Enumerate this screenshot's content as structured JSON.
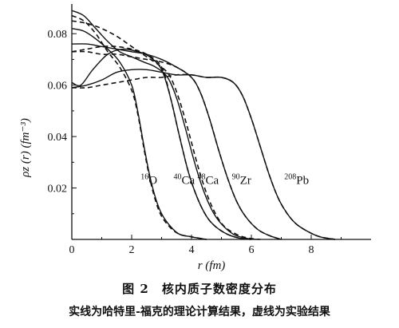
{
  "chart_data": {
    "type": "line",
    "xlabel": "r (fm)",
    "ylabel": "ρz (r) (fm⁻³)",
    "xlim": [
      0,
      10
    ],
    "ylim": [
      0,
      0.09
    ],
    "x_ticks": [
      "0",
      "2",
      "4",
      "6",
      "8"
    ],
    "y_ticks": [
      "0.02",
      "0.04",
      "0.06",
      "0.08"
    ],
    "grid": false,
    "legend": "none",
    "line_styles": {
      "theory": "solid",
      "experiment": "dashed"
    },
    "series": [
      {
        "name": "16O",
        "label_base": "O",
        "label_mass": "16",
        "label_x": 2.3,
        "label_y": 0.0215,
        "solid": [
          [
            0,
            0.082
          ],
          [
            0.4,
            0.081
          ],
          [
            0.8,
            0.078
          ],
          [
            1.2,
            0.074
          ],
          [
            1.6,
            0.069
          ],
          [
            2.0,
            0.06
          ],
          [
            2.2,
            0.05
          ],
          [
            2.4,
            0.037
          ],
          [
            2.6,
            0.025
          ],
          [
            2.8,
            0.016
          ],
          [
            3.0,
            0.01
          ],
          [
            3.3,
            0.005
          ],
          [
            3.6,
            0.002
          ],
          [
            4.0,
            0.001
          ],
          [
            4.5,
            0
          ]
        ],
        "dashed": [
          [
            0,
            0.087
          ],
          [
            0.4,
            0.085
          ],
          [
            0.8,
            0.08
          ],
          [
            1.2,
            0.073
          ],
          [
            1.6,
            0.067
          ],
          [
            2.0,
            0.058
          ],
          [
            2.2,
            0.049
          ],
          [
            2.4,
            0.036
          ],
          [
            2.6,
            0.024
          ],
          [
            2.8,
            0.015
          ],
          [
            3.0,
            0.009
          ],
          [
            3.3,
            0.0045
          ],
          [
            3.6,
            0.002
          ],
          [
            4.0,
            0.001
          ],
          [
            4.5,
            0
          ]
        ]
      },
      {
        "name": "40Ca",
        "label_base": "Ca",
        "label_mass": "40",
        "label_x": 3.4,
        "label_y": 0.0215,
        "solid": [
          [
            0,
            0.061
          ],
          [
            0.3,
            0.06
          ],
          [
            0.7,
            0.066
          ],
          [
            1.2,
            0.072
          ],
          [
            1.7,
            0.074
          ],
          [
            2.2,
            0.073
          ],
          [
            2.6,
            0.071
          ],
          [
            3.0,
            0.066
          ],
          [
            3.3,
            0.055
          ],
          [
            3.6,
            0.04
          ],
          [
            3.9,
            0.026
          ],
          [
            4.2,
            0.016
          ],
          [
            4.5,
            0.009
          ],
          [
            4.8,
            0.005
          ],
          [
            5.2,
            0.002
          ],
          [
            5.6,
            0.0005
          ],
          [
            6.0,
            0
          ]
        ],
        "dashed": [
          [
            0,
            0.073
          ],
          [
            0.5,
            0.074
          ],
          [
            1.0,
            0.075
          ],
          [
            1.5,
            0.075
          ],
          [
            2.0,
            0.074
          ],
          [
            2.5,
            0.072
          ],
          [
            3.0,
            0.067
          ],
          [
            3.3,
            0.055
          ],
          [
            3.6,
            0.04
          ],
          [
            3.9,
            0.026
          ],
          [
            4.2,
            0.016
          ],
          [
            4.5,
            0.009
          ],
          [
            4.8,
            0.005
          ],
          [
            5.2,
            0.002
          ],
          [
            5.6,
            0.0005
          ],
          [
            6.0,
            0
          ]
        ]
      },
      {
        "name": "48Ca",
        "label_base": "Ca",
        "label_mass": "48",
        "label_x": 4.2,
        "label_y": 0.0215,
        "solid": [
          [
            0,
            0.089
          ],
          [
            0.4,
            0.087
          ],
          [
            0.8,
            0.082
          ],
          [
            1.2,
            0.077
          ],
          [
            1.6,
            0.073
          ],
          [
            2.0,
            0.071
          ],
          [
            2.4,
            0.069
          ],
          [
            2.8,
            0.067
          ],
          [
            3.2,
            0.063
          ],
          [
            3.5,
            0.055
          ],
          [
            3.8,
            0.043
          ],
          [
            4.1,
            0.03
          ],
          [
            4.4,
            0.019
          ],
          [
            4.7,
            0.011
          ],
          [
            5.0,
            0.006
          ],
          [
            5.4,
            0.002
          ],
          [
            5.8,
            0.0005
          ],
          [
            6.2,
            0
          ]
        ],
        "dashed": [
          [
            0,
            0.085
          ],
          [
            0.5,
            0.084
          ],
          [
            1.0,
            0.082
          ],
          [
            1.5,
            0.079
          ],
          [
            2.0,
            0.075
          ],
          [
            2.5,
            0.071
          ],
          [
            3.0,
            0.067
          ],
          [
            3.3,
            0.063
          ],
          [
            3.6,
            0.054
          ],
          [
            3.9,
            0.042
          ],
          [
            4.2,
            0.029
          ],
          [
            4.5,
            0.018
          ],
          [
            4.8,
            0.01
          ],
          [
            5.1,
            0.005
          ],
          [
            5.5,
            0.002
          ],
          [
            5.9,
            0.0005
          ],
          [
            6.3,
            0
          ]
        ]
      },
      {
        "name": "90Zr",
        "label_base": "Zr",
        "label_mass": "90",
        "label_x": 5.35,
        "label_y": 0.0215,
        "solid": [
          [
            0,
            0.076
          ],
          [
            0.5,
            0.076
          ],
          [
            1.0,
            0.075
          ],
          [
            1.5,
            0.074
          ],
          [
            2.0,
            0.073
          ],
          [
            2.5,
            0.072
          ],
          [
            3.0,
            0.07
          ],
          [
            3.5,
            0.067
          ],
          [
            4.0,
            0.063
          ],
          [
            4.3,
            0.057
          ],
          [
            4.6,
            0.047
          ],
          [
            4.9,
            0.035
          ],
          [
            5.2,
            0.024
          ],
          [
            5.5,
            0.015
          ],
          [
            5.8,
            0.009
          ],
          [
            6.2,
            0.004
          ],
          [
            6.6,
            0.0015
          ],
          [
            7.0,
            0
          ]
        ],
        "dashed": [
          [
            0,
            0.073
          ],
          [
            0.5,
            0.073
          ],
          [
            1.0,
            0.072
          ],
          [
            1.5,
            0.072
          ],
          [
            2.0,
            0.071
          ],
          [
            2.5,
            0.07
          ],
          [
            3.0,
            0.069
          ],
          [
            3.5,
            0.067
          ],
          [
            4.0,
            0.063
          ],
          [
            4.3,
            0.057
          ],
          [
            4.6,
            0.047
          ],
          [
            4.9,
            0.035
          ],
          [
            5.2,
            0.024
          ],
          [
            5.5,
            0.015
          ],
          [
            5.8,
            0.009
          ],
          [
            6.2,
            0.004
          ],
          [
            6.6,
            0.0015
          ],
          [
            7.0,
            0
          ]
        ]
      },
      {
        "name": "208Pb",
        "label_base": "Pb",
        "label_mass": "208",
        "label_x": 7.1,
        "label_y": 0.0215,
        "solid": [
          [
            0,
            0.059
          ],
          [
            0.5,
            0.06
          ],
          [
            1.0,
            0.062
          ],
          [
            1.5,
            0.065
          ],
          [
            2.0,
            0.066
          ],
          [
            2.5,
            0.066
          ],
          [
            3.0,
            0.065
          ],
          [
            3.5,
            0.064
          ],
          [
            4.0,
            0.064
          ],
          [
            4.5,
            0.063
          ],
          [
            5.0,
            0.063
          ],
          [
            5.4,
            0.061
          ],
          [
            5.7,
            0.056
          ],
          [
            6.0,
            0.047
          ],
          [
            6.3,
            0.036
          ],
          [
            6.6,
            0.025
          ],
          [
            6.9,
            0.016
          ],
          [
            7.2,
            0.01
          ],
          [
            7.5,
            0.006
          ],
          [
            7.9,
            0.003
          ],
          [
            8.3,
            0.001
          ],
          [
            8.8,
            0
          ]
        ],
        "dashed": [
          [
            0,
            0.059
          ],
          [
            0.5,
            0.059
          ],
          [
            1.0,
            0.06
          ],
          [
            1.5,
            0.061
          ],
          [
            2.0,
            0.062
          ],
          [
            2.5,
            0.063
          ],
          [
            3.0,
            0.063
          ],
          [
            3.5,
            0.064
          ],
          [
            4.0,
            0.064
          ],
          [
            4.5,
            0.063
          ],
          [
            5.0,
            0.063
          ],
          [
            5.4,
            0.061
          ],
          [
            5.7,
            0.056
          ],
          [
            6.0,
            0.047
          ],
          [
            6.3,
            0.036
          ],
          [
            6.6,
            0.025
          ],
          [
            6.9,
            0.016
          ],
          [
            7.2,
            0.01
          ],
          [
            7.5,
            0.006
          ],
          [
            7.9,
            0.003
          ],
          [
            8.3,
            0.001
          ],
          [
            8.8,
            0
          ]
        ]
      }
    ]
  },
  "caption": {
    "figure_title": "图 2　核内质子数密度分布",
    "note": "实线为哈特里-福克的理论计算结果，虚线为实验结果"
  }
}
